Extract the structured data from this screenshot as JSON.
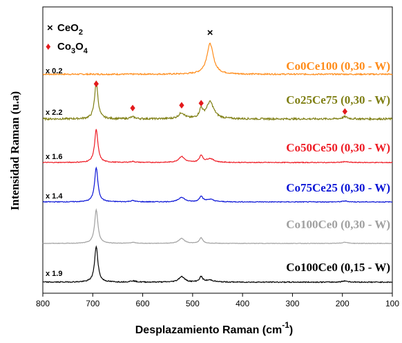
{
  "chart_data": {
    "type": "line",
    "title": "",
    "xlabel": "Desplazamiento Raman (cm",
    "xlabel_sup": "-1",
    "xlabel_close": ")",
    "ylabel": "Intensidad Raman (u.a)",
    "xlim": [
      800,
      100
    ],
    "x_reversed": true,
    "x_ticks": [
      800,
      700,
      600,
      500,
      400,
      300,
      200,
      100
    ],
    "y_ticks_shown": false,
    "grid": false,
    "legend": {
      "placement": "top-left",
      "items": [
        {
          "marker": "×",
          "label": "CeO",
          "sub": "2",
          "color": "#000000"
        },
        {
          "marker": "♦",
          "label": "Co",
          "sub1": "3",
          "mid": "O",
          "sub2": "4",
          "color": "#e31a1c"
        }
      ]
    },
    "peak_positions_cm1": [
      693,
      620,
      522,
      483,
      465,
      195
    ],
    "series": [
      {
        "name": "Co0Ce100 (0,30 - W)",
        "multiplier": "x 0.2",
        "color": "#ff8c1a",
        "baseline": 0.1,
        "noise": 0.3,
        "peaks": [
          {
            "x": 465,
            "h": 6.8,
            "w": 8
          }
        ]
      },
      {
        "name": "Co25Ce75 (0,30 - W)",
        "multiplier": "x 2.2",
        "color": "#7f7f14",
        "baseline": 0.0,
        "noise": 0.5,
        "peaks": [
          {
            "x": 693,
            "h": 10.2,
            "w": 4
          },
          {
            "x": 620,
            "h": 0.5,
            "w": 6
          },
          {
            "x": 522,
            "h": 1.6,
            "w": 7
          },
          {
            "x": 483,
            "h": 2.4,
            "w": 4
          },
          {
            "x": 465,
            "h": 4.6,
            "w": 9
          },
          {
            "x": 195,
            "h": 0.6,
            "w": 6
          }
        ]
      },
      {
        "name": "Co50Ce50 (0,30 - W)",
        "multiplier": "x 1.6",
        "color": "#ee1c25",
        "baseline": 0.0,
        "noise": 0.25,
        "peaks": [
          {
            "x": 693,
            "h": 10.6,
            "w": 4
          },
          {
            "x": 620,
            "h": 0.3,
            "w": 6
          },
          {
            "x": 522,
            "h": 1.9,
            "w": 7
          },
          {
            "x": 483,
            "h": 2.2,
            "w": 4
          },
          {
            "x": 465,
            "h": 1.2,
            "w": 9
          },
          {
            "x": 195,
            "h": 0.3,
            "w": 6
          }
        ]
      },
      {
        "name": "Co75Ce25 (0,30 - W)",
        "multiplier": "x 1.4",
        "color": "#0a14d6",
        "baseline": 0.0,
        "noise": 0.25,
        "peaks": [
          {
            "x": 693,
            "h": 11.0,
            "w": 4
          },
          {
            "x": 620,
            "h": 0.4,
            "w": 6
          },
          {
            "x": 522,
            "h": 1.5,
            "w": 7
          },
          {
            "x": 483,
            "h": 1.8,
            "w": 4
          },
          {
            "x": 465,
            "h": 0.8,
            "w": 9
          },
          {
            "x": 195,
            "h": 0.3,
            "w": 6
          }
        ]
      },
      {
        "name": "Co100Ce0 (0,30 - W)",
        "multiplier": "",
        "color": "#a0a0a0",
        "baseline": 0.0,
        "noise": 0.15,
        "peaks": [
          {
            "x": 693,
            "h": 10.8,
            "w": 4
          },
          {
            "x": 620,
            "h": 0.3,
            "w": 6
          },
          {
            "x": 522,
            "h": 1.6,
            "w": 7
          },
          {
            "x": 483,
            "h": 1.8,
            "w": 4
          },
          {
            "x": 195,
            "h": 0.4,
            "w": 6
          }
        ]
      },
      {
        "name": "Co100Ce0 (0,15 - W)",
        "multiplier": "x 1.9",
        "color": "#000000",
        "baseline": 0.0,
        "noise": 0.3,
        "peaks": [
          {
            "x": 693,
            "h": 11.0,
            "w": 4
          },
          {
            "x": 620,
            "h": 0.4,
            "w": 6
          },
          {
            "x": 522,
            "h": 1.7,
            "w": 7
          },
          {
            "x": 483,
            "h": 1.6,
            "w": 4
          },
          {
            "x": 465,
            "h": 0.6,
            "w": 9
          },
          {
            "x": 195,
            "h": 0.4,
            "w": 6
          }
        ]
      }
    ]
  }
}
